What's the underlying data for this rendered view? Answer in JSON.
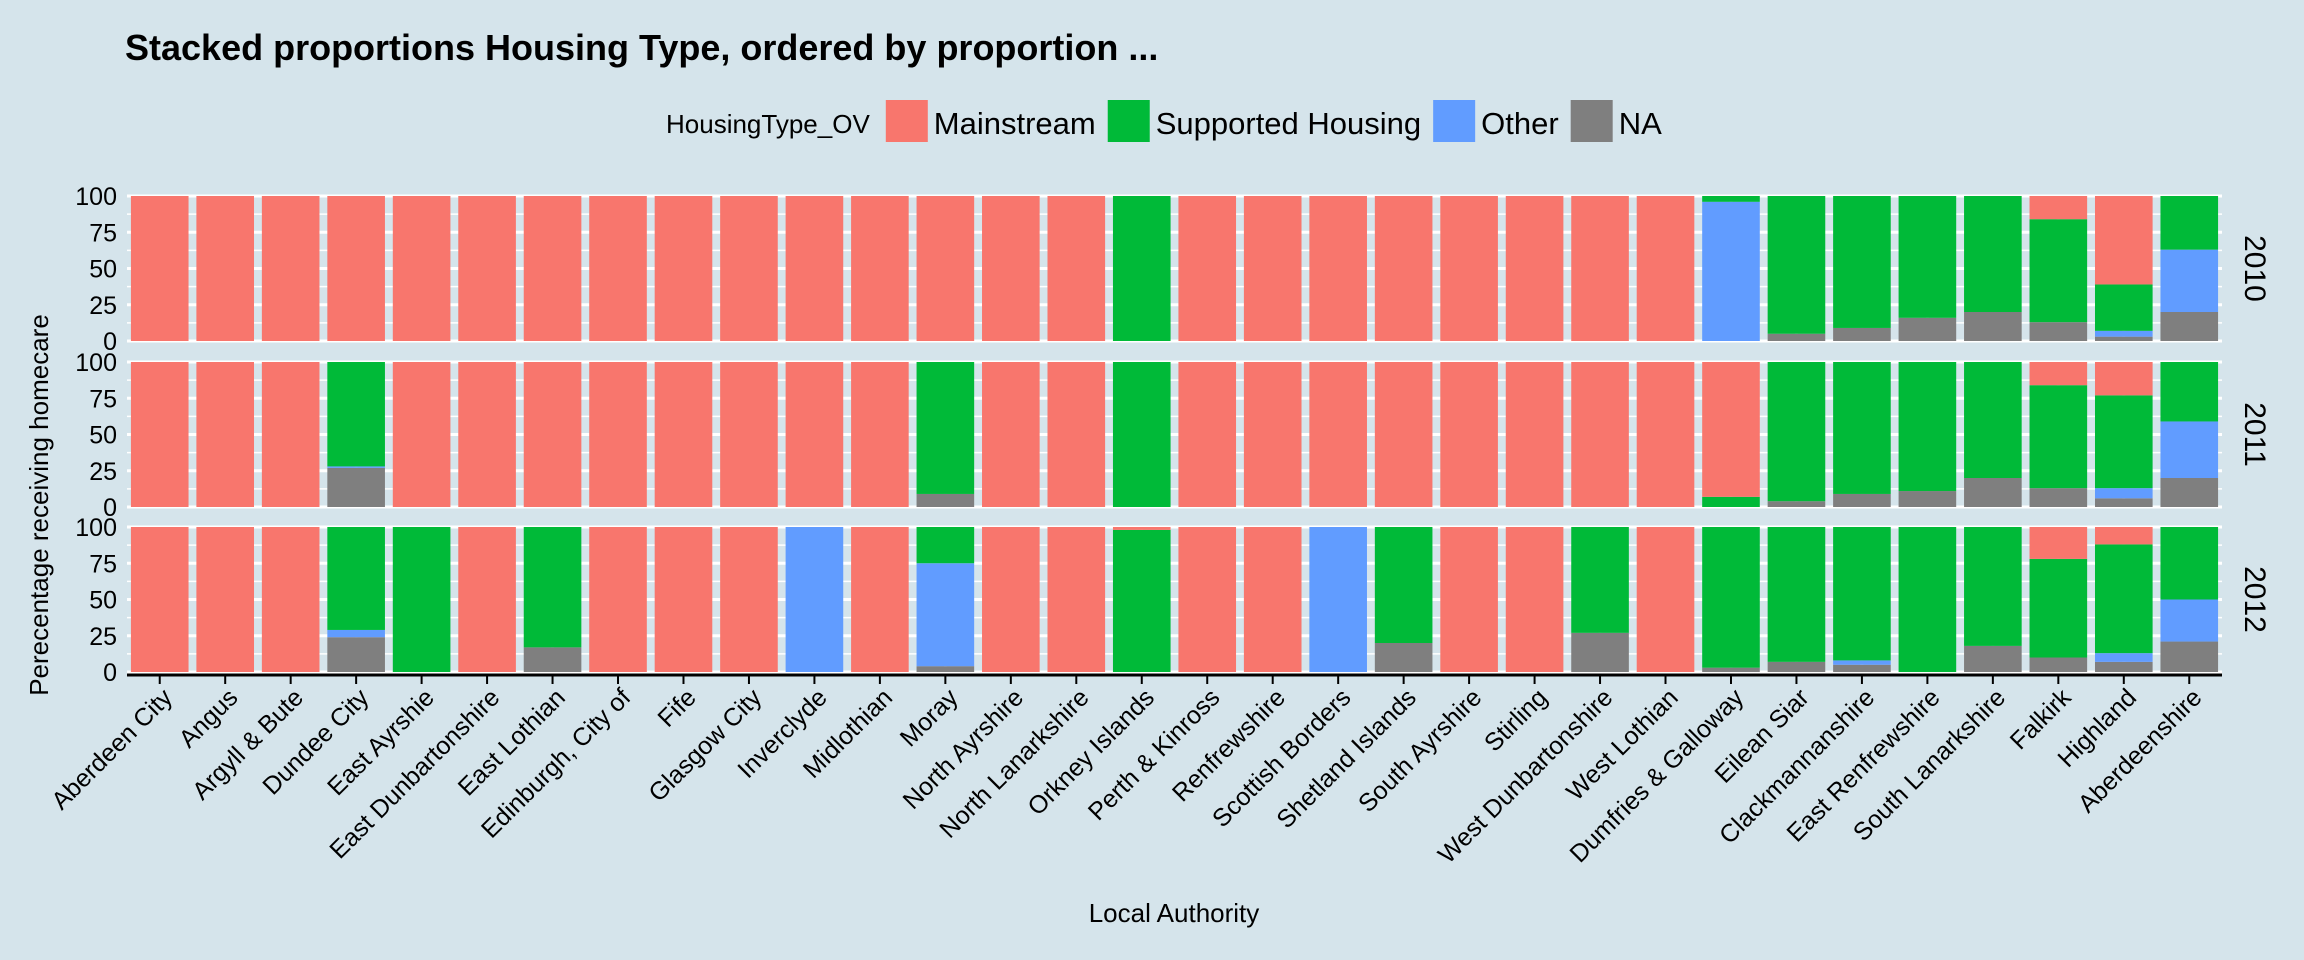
{
  "chart_data": {
    "type": "bar",
    "stacked": true,
    "title": "Stacked proportions Housing Type, ordered by proportion ...",
    "xlabel": "Local Authority",
    "ylabel": "Perecentage receiving homecare",
    "ylim": [
      0,
      100
    ],
    "yticks": [
      "0",
      "25",
      "50",
      "75",
      "100"
    ],
    "legend": {
      "title": "HousingType_OV",
      "position": "top",
      "entries": [
        {
          "name": "Mainstream",
          "color": "#f8766d"
        },
        {
          "name": "Supported Housing",
          "color": "#00ba38"
        },
        {
          "name": "Other",
          "color": "#619cff"
        },
        {
          "name": "NA",
          "color": "#7f7f7f"
        }
      ]
    },
    "grid": true,
    "categories": [
      "Aberdeen City",
      "Angus",
      "Argyll & Bute",
      "Dundee City",
      "East Ayrshie",
      "East Dunbartonshire",
      "East Lothian",
      "Edinburgh, City of",
      "Fife",
      "Glasgow City",
      "Inverclyde",
      "Midlothian",
      "Moray",
      "North Ayrshire",
      "North Lanarkshire",
      "Orkney Islands",
      "Perth & Kinross",
      "Renfrewshire",
      "Scottish Borders",
      "Shetland Islands",
      "South Ayrshire",
      "Stirling",
      "West Dunbartonshire",
      "West Lothian",
      "Dumfries & Galloway",
      "Eilean Siar",
      "Clackmannanshire",
      "East Renfrewshire",
      "South Lanarkshire",
      "Falkirk",
      "Highland",
      "Aberdeenshire"
    ],
    "panels": [
      {
        "label": "2010",
        "stack_order_bottom_to_top": [
          "NA",
          "Other",
          "Supported Housing",
          "Mainstream"
        ],
        "series": [
          {
            "name": "Mainstream",
            "values": [
              100,
              100,
              100,
              100,
              100,
              100,
              100,
              100,
              100,
              100,
              100,
              100,
              100,
              100,
              100,
              0,
              100,
              100,
              100,
              100,
              100,
              100,
              100,
              100,
              0,
              0,
              0,
              0,
              0,
              16,
              61,
              0
            ]
          },
          {
            "name": "Supported Housing",
            "values": [
              0,
              0,
              0,
              0,
              0,
              0,
              0,
              0,
              0,
              0,
              0,
              0,
              0,
              0,
              0,
              100,
              0,
              0,
              0,
              0,
              0,
              0,
              0,
              0,
              4,
              95,
              91,
              84,
              80,
              71,
              32,
              37
            ]
          },
          {
            "name": "Other",
            "values": [
              0,
              0,
              0,
              0,
              0,
              0,
              0,
              0,
              0,
              0,
              0,
              0,
              0,
              0,
              0,
              0,
              0,
              0,
              0,
              0,
              0,
              0,
              0,
              0,
              96,
              0,
              0,
              0,
              0,
              0,
              4,
              43
            ]
          },
          {
            "name": "NA",
            "values": [
              0,
              0,
              0,
              0,
              0,
              0,
              0,
              0,
              0,
              0,
              0,
              0,
              0,
              0,
              0,
              0,
              0,
              0,
              0,
              0,
              0,
              0,
              0,
              0,
              0,
              5,
              9,
              16,
              20,
              13,
              3,
              20
            ]
          }
        ]
      },
      {
        "label": "2011",
        "stack_order_bottom_to_top": [
          "NA",
          "Other",
          "Supported Housing",
          "Mainstream"
        ],
        "series": [
          {
            "name": "Mainstream",
            "values": [
              100,
              100,
              100,
              0,
              100,
              100,
              100,
              100,
              100,
              100,
              100,
              100,
              0,
              100,
              100,
              0,
              100,
              100,
              100,
              100,
              100,
              100,
              100,
              100,
              93,
              0,
              0,
              0,
              0,
              16,
              23,
              0
            ]
          },
          {
            "name": "Supported Housing",
            "values": [
              0,
              0,
              0,
              72,
              0,
              0,
              0,
              0,
              0,
              0,
              0,
              0,
              91,
              0,
              0,
              100,
              0,
              0,
              0,
              0,
              0,
              0,
              0,
              0,
              7,
              96,
              91,
              89,
              80,
              71,
              64,
              41
            ]
          },
          {
            "name": "Other",
            "values": [
              0,
              0,
              0,
              1,
              0,
              0,
              0,
              0,
              0,
              0,
              0,
              0,
              0,
              0,
              0,
              0,
              0,
              0,
              0,
              0,
              0,
              0,
              0,
              0,
              0,
              0,
              0,
              0,
              0,
              0,
              7,
              39
            ]
          },
          {
            "name": "NA",
            "values": [
              0,
              0,
              0,
              27,
              0,
              0,
              0,
              0,
              0,
              0,
              0,
              0,
              9,
              0,
              0,
              0,
              0,
              0,
              0,
              0,
              0,
              0,
              0,
              0,
              0,
              4,
              9,
              11,
              20,
              13,
              6,
              20
            ]
          }
        ]
      },
      {
        "label": "2012",
        "stack_order_bottom_to_top": [
          "NA",
          "Other",
          "Supported Housing",
          "Mainstream"
        ],
        "series": [
          {
            "name": "Mainstream",
            "values": [
              100,
              100,
              100,
              0,
              0,
              100,
              0,
              100,
              100,
              100,
              0,
              100,
              0,
              100,
              100,
              2,
              100,
              100,
              0,
              0,
              100,
              100,
              0,
              100,
              0,
              0,
              0,
              0,
              0,
              22,
              12,
              0
            ]
          },
          {
            "name": "Supported Housing",
            "values": [
              0,
              0,
              0,
              71,
              100,
              0,
              83,
              0,
              0,
              0,
              0,
              0,
              25,
              0,
              0,
              98,
              0,
              0,
              0,
              80,
              0,
              0,
              73,
              0,
              97,
              93,
              92,
              100,
              82,
              68,
              75,
              50
            ]
          },
          {
            "name": "Other",
            "values": [
              0,
              0,
              0,
              5,
              0,
              0,
              0,
              0,
              0,
              0,
              100,
              0,
              71,
              0,
              0,
              0,
              0,
              0,
              100,
              0,
              0,
              0,
              0,
              0,
              0,
              0,
              3,
              0,
              0,
              0,
              6,
              29
            ]
          },
          {
            "name": "NA",
            "values": [
              0,
              0,
              0,
              24,
              0,
              0,
              17,
              0,
              0,
              0,
              0,
              0,
              4,
              0,
              0,
              0,
              0,
              0,
              0,
              20,
              0,
              0,
              27,
              0,
              3,
              7,
              5,
              0,
              18,
              10,
              7,
              21
            ]
          }
        ]
      }
    ]
  }
}
